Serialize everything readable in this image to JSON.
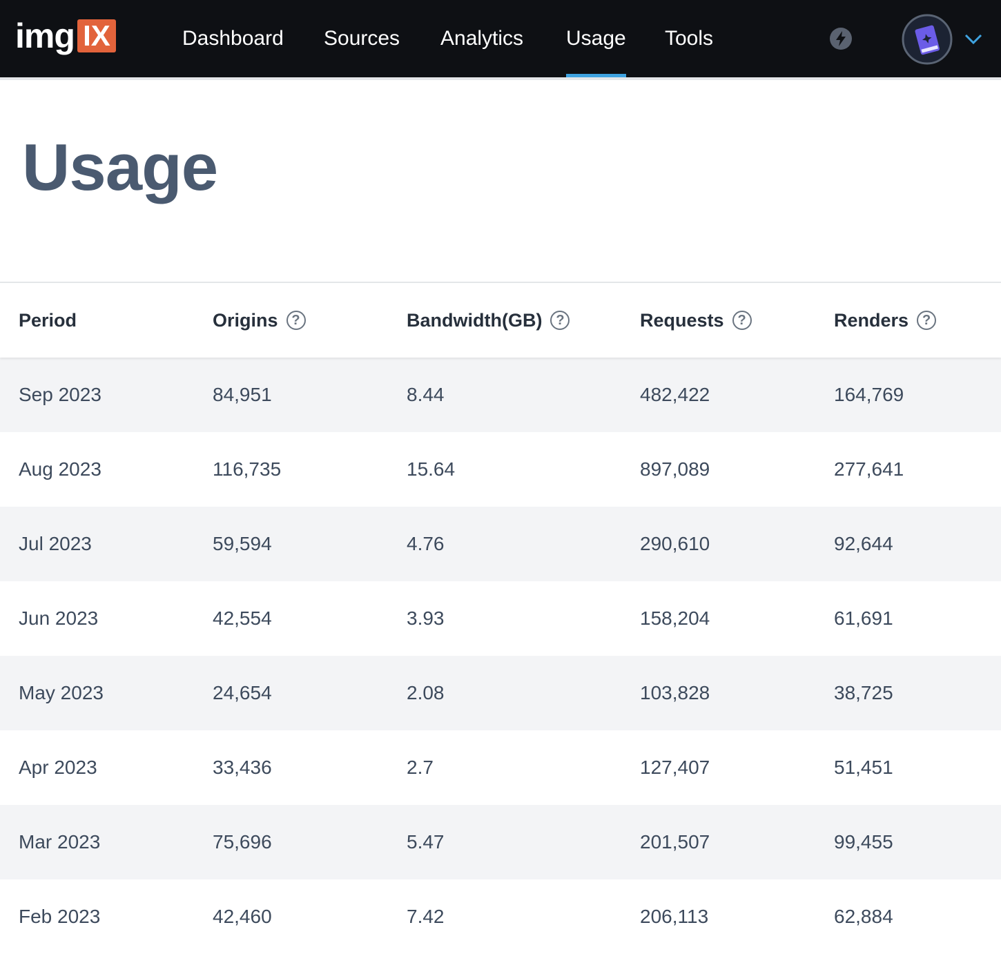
{
  "header": {
    "logo": {
      "text": "img",
      "badge": "IX"
    },
    "nav": [
      "Dashboard",
      "Sources",
      "Analytics",
      "Usage",
      "Tools"
    ],
    "active": 3
  },
  "page": {
    "title": "Usage"
  },
  "table": {
    "columns": [
      "Period",
      "Origins",
      "Bandwidth(GB)",
      "Requests",
      "Renders"
    ],
    "rows": [
      [
        "Sep 2023",
        "84,951",
        "8.44",
        "482,422",
        "164,769"
      ],
      [
        "Aug 2023",
        "116,735",
        "15.64",
        "897,089",
        "277,641"
      ],
      [
        "Jul 2023",
        "59,594",
        "4.76",
        "290,610",
        "92,644"
      ],
      [
        "Jun 2023",
        "42,554",
        "3.93",
        "158,204",
        "61,691"
      ],
      [
        "May 2023",
        "24,654",
        "2.08",
        "103,828",
        "38,725"
      ],
      [
        "Apr 2023",
        "33,436",
        "2.7",
        "127,407",
        "51,451"
      ],
      [
        "Mar 2023",
        "75,696",
        "5.47",
        "201,507",
        "99,455"
      ],
      [
        "Feb 2023",
        "42,460",
        "7.42",
        "206,113",
        "62,884"
      ]
    ]
  }
}
